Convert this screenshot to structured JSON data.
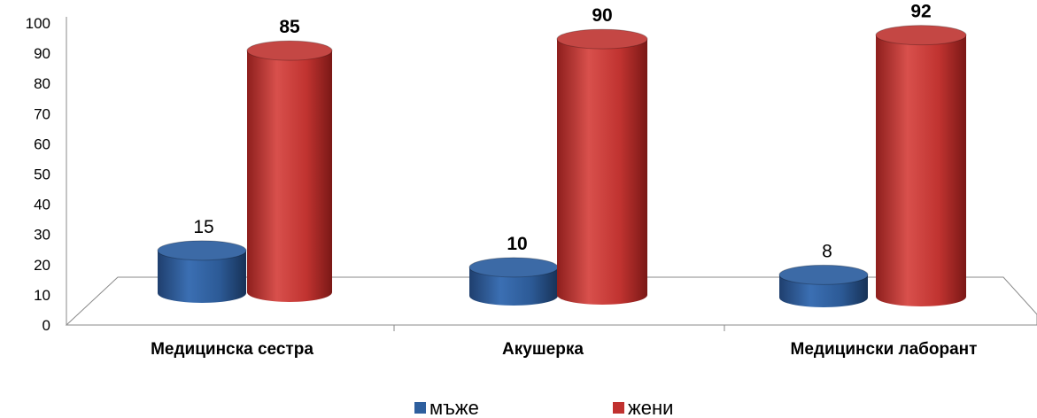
{
  "chart_data": {
    "type": "bar",
    "style": "3d-cylinder",
    "categories": [
      "Медицинска сестра",
      "Акушерка",
      "Медицински лаборант"
    ],
    "series": [
      {
        "name": "мъже",
        "values": [
          15,
          10,
          8
        ],
        "color": "#2E5F9E",
        "label_bold": [
          false,
          true,
          false
        ]
      },
      {
        "name": "жени",
        "values": [
          85,
          90,
          92
        ],
        "color": "#C0312F",
        "label_bold": [
          true,
          true,
          true
        ]
      }
    ],
    "ylim": [
      0,
      100
    ],
    "yticks": [
      "0",
      "10",
      "20",
      "30",
      "40",
      "50",
      "60",
      "70",
      "80",
      "90",
      "100"
    ],
    "grid": false,
    "legend_position": "bottom-center"
  }
}
